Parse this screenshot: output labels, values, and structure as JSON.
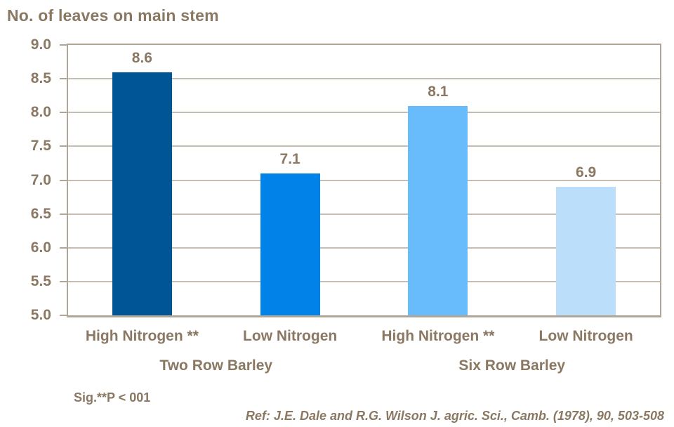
{
  "title": "No. of leaves on main stem",
  "notes": {
    "significance": "Sig.**P < 001",
    "reference": "Ref: J.E. Dale and R.G. Wilson J. agric. Sci., Camb. (1978), 90, 503-508"
  },
  "colors": {
    "text": "#8A7862",
    "gridline": "#C6BDB2",
    "plot_border": "#B0A698",
    "bars": [
      "#005596",
      "#0082E8",
      "#69BCFC",
      "#BBDEFB"
    ]
  },
  "chart_data": {
    "type": "bar",
    "title": "No. of leaves on main stem",
    "categories": [
      "High Nitrogen **",
      "Low Nitrogen",
      "High Nitrogen **",
      "Low Nitrogen"
    ],
    "values": [
      8.6,
      7.1,
      8.1,
      6.9
    ],
    "data_labels": [
      "8.6",
      "7.1",
      "8.1",
      "6.9"
    ],
    "bar_colors": [
      "#005596",
      "#0082E8",
      "#69BCFC",
      "#BBDEFB"
    ],
    "group_labels": [
      {
        "label": "Two Row Barley",
        "span": [
          0,
          1
        ]
      },
      {
        "label": "Six Row Barley",
        "span": [
          2,
          3
        ]
      }
    ],
    "xlabel": "",
    "ylabel": "No. of leaves on main stem",
    "ylim": [
      5.0,
      9.0
    ],
    "ytick_step": 0.5,
    "ytick_labels": [
      "5.0",
      "5.5",
      "6.0",
      "6.5",
      "7.0",
      "7.5",
      "8.0",
      "8.5",
      "9.0"
    ],
    "grid": true,
    "legend": false,
    "annotations": [
      "Sig.**P < 001",
      "Ref: J.E. Dale and R.G. Wilson J. agric. Sci., Camb. (1978), 90, 503-508"
    ]
  }
}
